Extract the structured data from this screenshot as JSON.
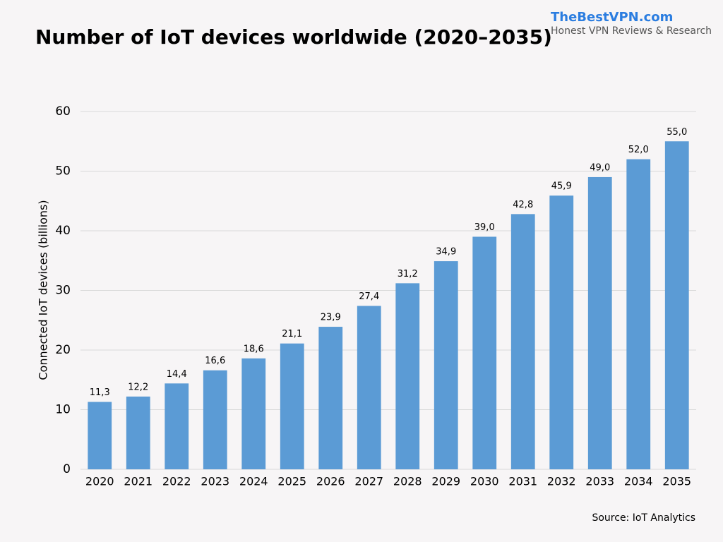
{
  "chart_data": {
    "type": "bar",
    "title": "Number of IoT devices worldwide (2020–2035)",
    "brand": "TheBestVPN.com",
    "brand_tagline": "Honest VPN Reviews & Research",
    "y_label": "Connected IoT devices (billions)",
    "source": "Source: IoT Analytics",
    "categories": [
      "2020",
      "2021",
      "2022",
      "2023",
      "2024",
      "2025",
      "2026",
      "2027",
      "2028",
      "2029",
      "2030",
      "2031",
      "2032",
      "2033",
      "2034",
      "2035"
    ],
    "values": [
      11.3,
      12.2,
      14.4,
      16.6,
      18.6,
      21.1,
      23.9,
      27.4,
      31.2,
      34.9,
      39.0,
      42.8,
      45.9,
      49.0,
      52.0,
      55.0
    ],
    "value_labels": [
      "11,3",
      "12,2",
      "14,4",
      "16,6",
      "18,6",
      "21,1",
      "23,9",
      "27,4",
      "31,2",
      "34,9",
      "39,0",
      "42,8",
      "45,9",
      "49,0",
      "52,0",
      "55,0"
    ],
    "color": "#5b9bd5",
    "ylim": [
      0,
      60
    ],
    "yticks": [
      0,
      10,
      20,
      30,
      40,
      50,
      60
    ],
    "grid": true
  }
}
